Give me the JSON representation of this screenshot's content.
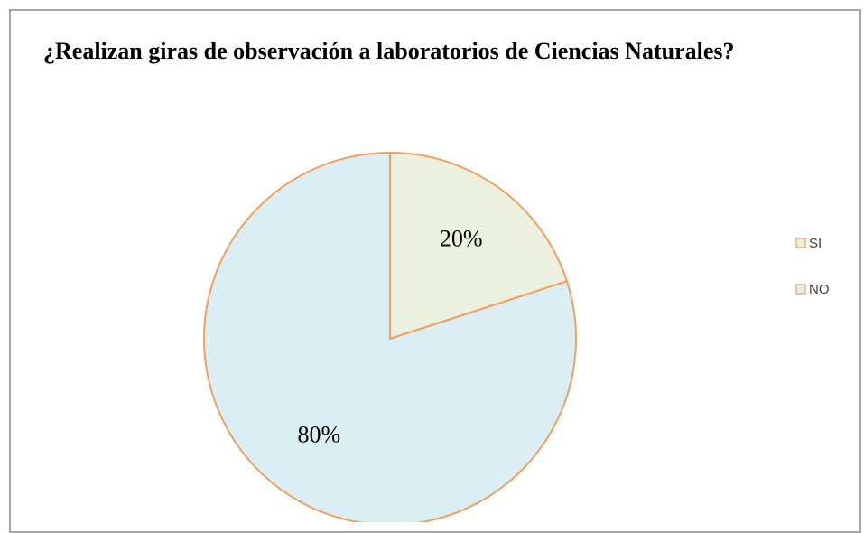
{
  "chart_data": {
    "type": "pie",
    "title": "¿Realizan giras de observación a laboratorios de Ciencias Naturales?",
    "categories": [
      "SI",
      "NO"
    ],
    "values": [
      20,
      80
    ],
    "value_labels": [
      "20%",
      "80%"
    ],
    "colors": [
      "#ebf1de",
      "#dbeef3"
    ],
    "edgecolor": "#f0a060",
    "legend": "right"
  }
}
